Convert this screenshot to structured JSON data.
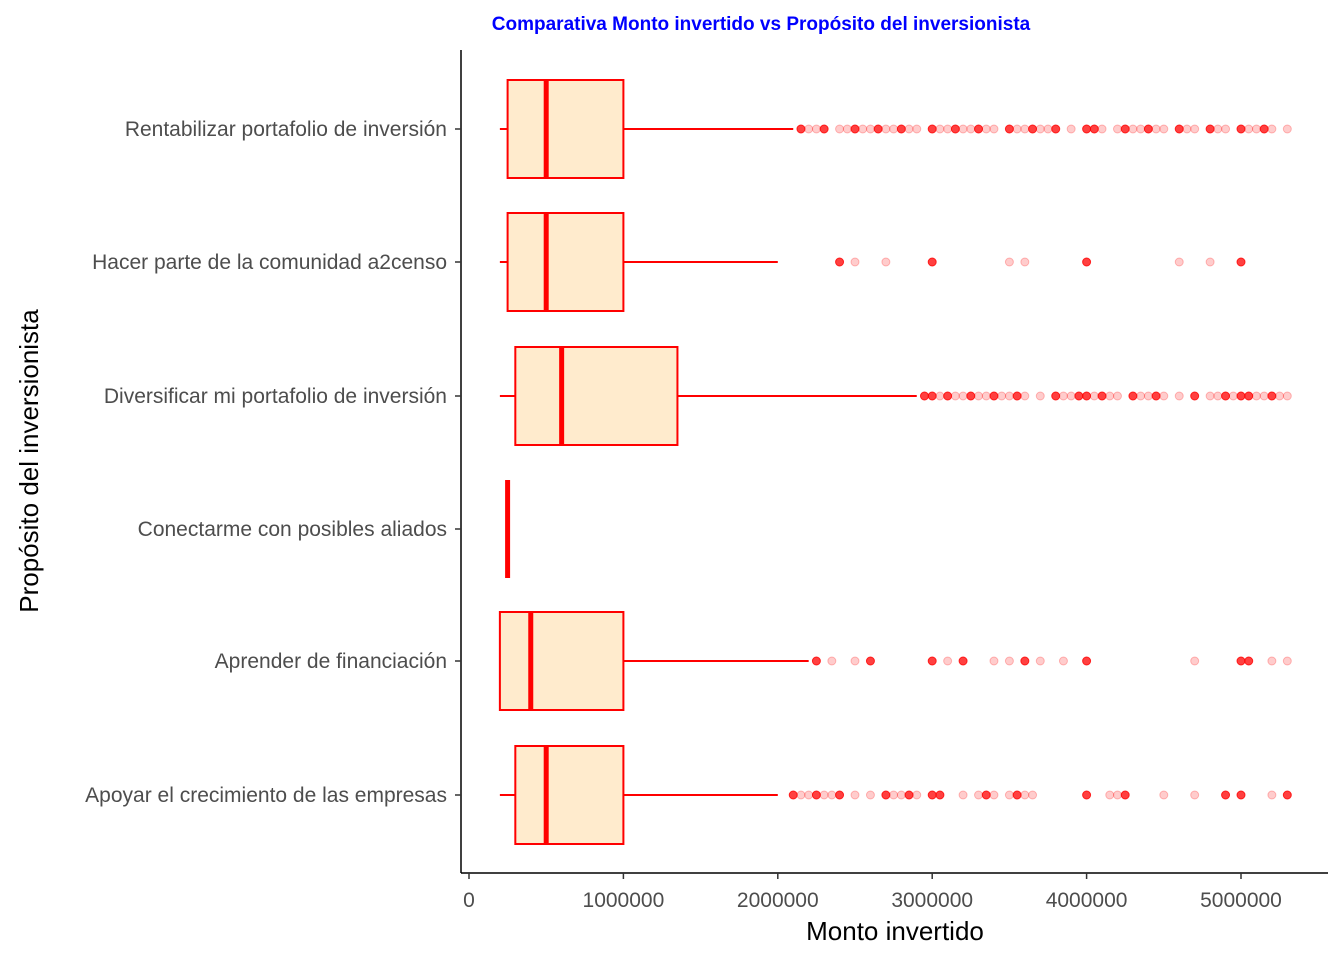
{
  "chart_data": {
    "type": "boxplot",
    "orientation": "horizontal",
    "title": "Comparativa Monto invertido vs Propósito del inversionista",
    "xlabel": "Monto invertido",
    "ylabel": "Propósito del inversionista",
    "xlim": [
      -20000,
      5500000
    ],
    "x_ticks": [
      0,
      1000000,
      2000000,
      3000000,
      4000000,
      5000000
    ],
    "x_tick_labels": [
      "0",
      "1000000",
      "2000000",
      "3000000",
      "4000000",
      "5000000"
    ],
    "grid": false,
    "colors": {
      "title": "#0000ff",
      "box_fill": "#ffebcd",
      "box_stroke": "#ff0000",
      "outlier": "#ff0000"
    },
    "categories": [
      "Rentabilizar portafolio de inversión",
      "Hacer parte de la comunidad a2censo",
      "Diversificar mi portafolio de inversión",
      "Conectarme con posibles aliados",
      "Aprender de financiación",
      "Apoyar el crecimiento de las empresas"
    ],
    "boxes": [
      {
        "category": "Rentabilizar portafolio de inversión",
        "min": 200000,
        "q1": 250000,
        "median": 500000,
        "q3": 1000000,
        "max": 2100000,
        "outliers": [
          2150000,
          2200000,
          2250000,
          2300000,
          2400000,
          2450000,
          2500000,
          2550000,
          2600000,
          2650000,
          2700000,
          2750000,
          2800000,
          2850000,
          2900000,
          3000000,
          3050000,
          3100000,
          3150000,
          3200000,
          3250000,
          3300000,
          3350000,
          3400000,
          3500000,
          3550000,
          3600000,
          3650000,
          3700000,
          3750000,
          3800000,
          3900000,
          4000000,
          4050000,
          4100000,
          4200000,
          4250000,
          4300000,
          4350000,
          4400000,
          4450000,
          4500000,
          4600000,
          4650000,
          4700000,
          4800000,
          4850000,
          4900000,
          5000000,
          5050000,
          5100000,
          5150000,
          5200000,
          5300000
        ]
      },
      {
        "category": "Hacer parte de la comunidad a2censo",
        "min": 200000,
        "q1": 250000,
        "median": 500000,
        "q3": 1000000,
        "max": 2000000,
        "outliers": [
          2400000,
          2500000,
          2700000,
          3000000,
          3500000,
          3600000,
          4000000,
          4600000,
          4800000,
          5000000
        ]
      },
      {
        "category": "Diversificar mi portafolio de inversión",
        "min": 200000,
        "q1": 300000,
        "median": 600000,
        "q3": 1350000,
        "max": 2900000,
        "outliers": [
          2950000,
          3000000,
          3050000,
          3100000,
          3150000,
          3200000,
          3250000,
          3300000,
          3350000,
          3400000,
          3450000,
          3500000,
          3550000,
          3600000,
          3700000,
          3800000,
          3850000,
          3900000,
          3950000,
          4000000,
          4050000,
          4100000,
          4150000,
          4200000,
          4300000,
          4350000,
          4400000,
          4450000,
          4500000,
          4600000,
          4700000,
          4800000,
          4850000,
          4900000,
          4950000,
          5000000,
          5050000,
          5100000,
          5150000,
          5200000,
          5250000,
          5300000
        ]
      },
      {
        "category": "Conectarme con posibles aliados",
        "min": 250000,
        "q1": 250000,
        "median": 250000,
        "q3": 250000,
        "max": 250000,
        "outliers": []
      },
      {
        "category": "Aprender de financiación",
        "min": 200000,
        "q1": 200000,
        "median": 400000,
        "q3": 1000000,
        "max": 2200000,
        "outliers": [
          2250000,
          2350000,
          2500000,
          2600000,
          3000000,
          3100000,
          3200000,
          3400000,
          3500000,
          3600000,
          3700000,
          3850000,
          4000000,
          4700000,
          5000000,
          5050000,
          5200000,
          5300000
        ]
      },
      {
        "category": "Apoyar el crecimiento de las empresas",
        "min": 200000,
        "q1": 300000,
        "median": 500000,
        "q3": 1000000,
        "max": 2000000,
        "outliers": [
          2100000,
          2150000,
          2200000,
          2250000,
          2300000,
          2350000,
          2400000,
          2500000,
          2600000,
          2700000,
          2750000,
          2800000,
          2850000,
          2900000,
          3000000,
          3050000,
          3200000,
          3300000,
          3350000,
          3400000,
          3500000,
          3550000,
          3600000,
          3650000,
          4000000,
          4150000,
          4200000,
          4250000,
          4500000,
          4700000,
          4900000,
          5000000,
          5200000,
          5300000
        ]
      }
    ]
  }
}
